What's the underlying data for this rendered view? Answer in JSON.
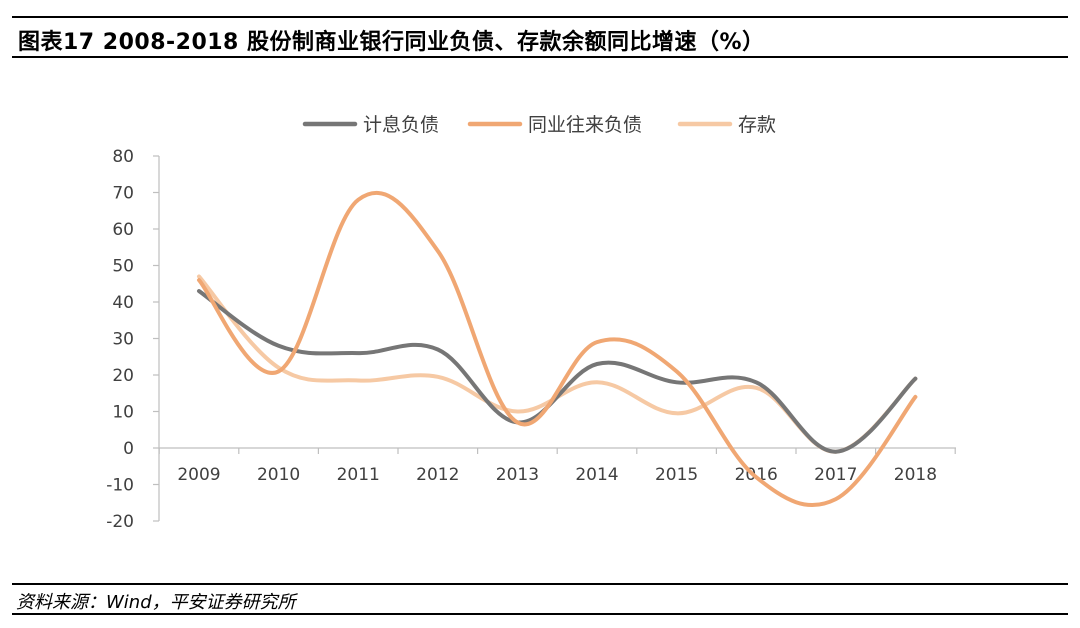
{
  "header": {
    "title": "图表17    2008-2018 股份制商业银行同业负债、存款余额同比增速（%）"
  },
  "source": {
    "text": "资料来源：Wind，平安证券研究所"
  },
  "chart_data": {
    "type": "line",
    "categories": [
      "2009",
      "2010",
      "2011",
      "2012",
      "2013",
      "2014",
      "2015",
      "2016",
      "2017",
      "2018"
    ],
    "ylim": [
      -20,
      80
    ],
    "yticks": [
      80,
      70,
      60,
      50,
      40,
      30,
      20,
      10,
      0,
      -10,
      -20
    ],
    "grid": false,
    "legend_position": "top-center",
    "series": [
      {
        "name": "计息负债",
        "color": "#767676",
        "values": [
          43,
          28,
          26,
          27,
          7,
          23,
          18,
          18,
          -1,
          19
        ]
      },
      {
        "name": "同业往来负债",
        "color": "#f0a773",
        "values": [
          46,
          21,
          68,
          54,
          7,
          29,
          21,
          -8,
          -14,
          14
        ]
      },
      {
        "name": "存款",
        "color": "#f6c9a4",
        "values": [
          47,
          22,
          18.5,
          19.5,
          10,
          18,
          9.5,
          16.5,
          -1,
          19
        ]
      }
    ]
  }
}
